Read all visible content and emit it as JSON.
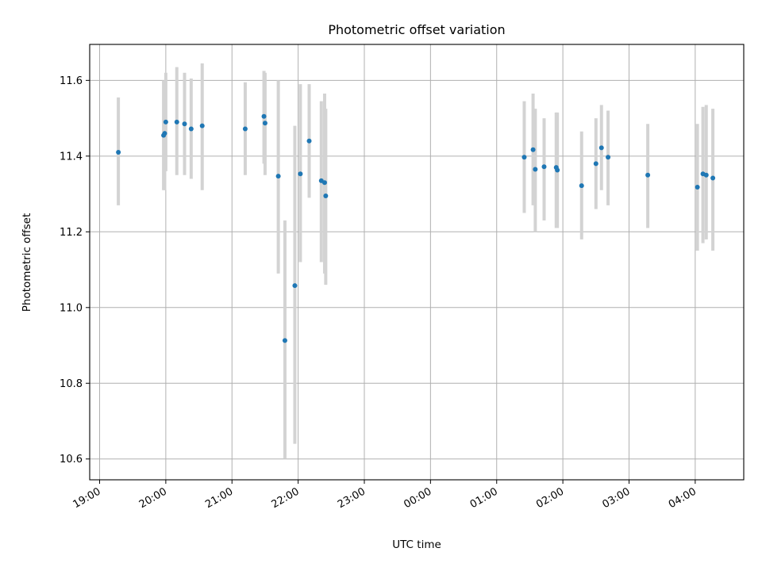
{
  "chart_data": {
    "type": "scatter",
    "title": "Photometric offset variation",
    "xlabel": "UTC time",
    "ylabel": "Photometric offset",
    "x_ticks": [
      "19:00",
      "20:00",
      "21:00",
      "22:00",
      "23:00",
      "00:00",
      "01:00",
      "02:00",
      "03:00",
      "04:00"
    ],
    "y_ticks": [
      "10.6",
      "10.8",
      "11.0",
      "11.2",
      "11.4",
      "11.6"
    ],
    "xlim": [
      "18:51",
      "04:44"
    ],
    "ylim": [
      10.545,
      11.695
    ],
    "grid": true,
    "marker_color": "#1f77b4",
    "errorbar_color": "#d3d3d3",
    "series": [
      {
        "x": [
          "19:17",
          "19:58",
          "19:59",
          "20:00",
          "20:10",
          "20:17",
          "20:23",
          "20:33",
          "21:12",
          "21:29",
          "21:30",
          "21:42",
          "21:48",
          "21:57",
          "22:02",
          "22:10",
          "22:21",
          "22:24",
          "22:25",
          "01:25",
          "01:33",
          "01:35",
          "01:43",
          "01:54",
          "01:55",
          "02:17",
          "02:30",
          "02:35",
          "02:41",
          "03:17",
          "04:02",
          "04:07",
          "04:10",
          "04:16"
        ],
        "y": [
          11.41,
          11.455,
          11.46,
          11.49,
          11.49,
          11.485,
          11.472,
          11.48,
          11.472,
          11.505,
          11.487,
          11.347,
          10.913,
          11.058,
          11.353,
          11.44,
          11.335,
          11.33,
          11.295,
          11.397,
          11.417,
          11.365,
          11.372,
          11.37,
          11.363,
          11.322,
          11.38,
          11.422,
          11.397,
          11.35,
          11.318,
          11.353,
          11.35,
          11.342
        ],
        "err_low": [
          11.27,
          11.31,
          11.31,
          11.36,
          11.35,
          11.35,
          11.34,
          11.31,
          11.35,
          11.38,
          11.35,
          11.09,
          10.6,
          10.64,
          11.12,
          11.29,
          11.12,
          11.09,
          11.06,
          11.25,
          11.27,
          11.2,
          11.23,
          11.21,
          11.21,
          11.18,
          11.26,
          11.31,
          11.27,
          11.21,
          11.15,
          11.17,
          11.18,
          11.15
        ],
        "err_high": [
          11.555,
          11.6,
          11.6,
          11.62,
          11.635,
          11.62,
          11.605,
          11.645,
          11.595,
          11.625,
          11.62,
          11.6,
          11.23,
          11.48,
          11.59,
          11.59,
          11.545,
          11.565,
          11.525,
          11.545,
          11.565,
          11.525,
          11.5,
          11.515,
          11.515,
          11.465,
          11.5,
          11.535,
          11.52,
          11.485,
          11.485,
          11.53,
          11.535,
          11.525
        ]
      }
    ]
  }
}
